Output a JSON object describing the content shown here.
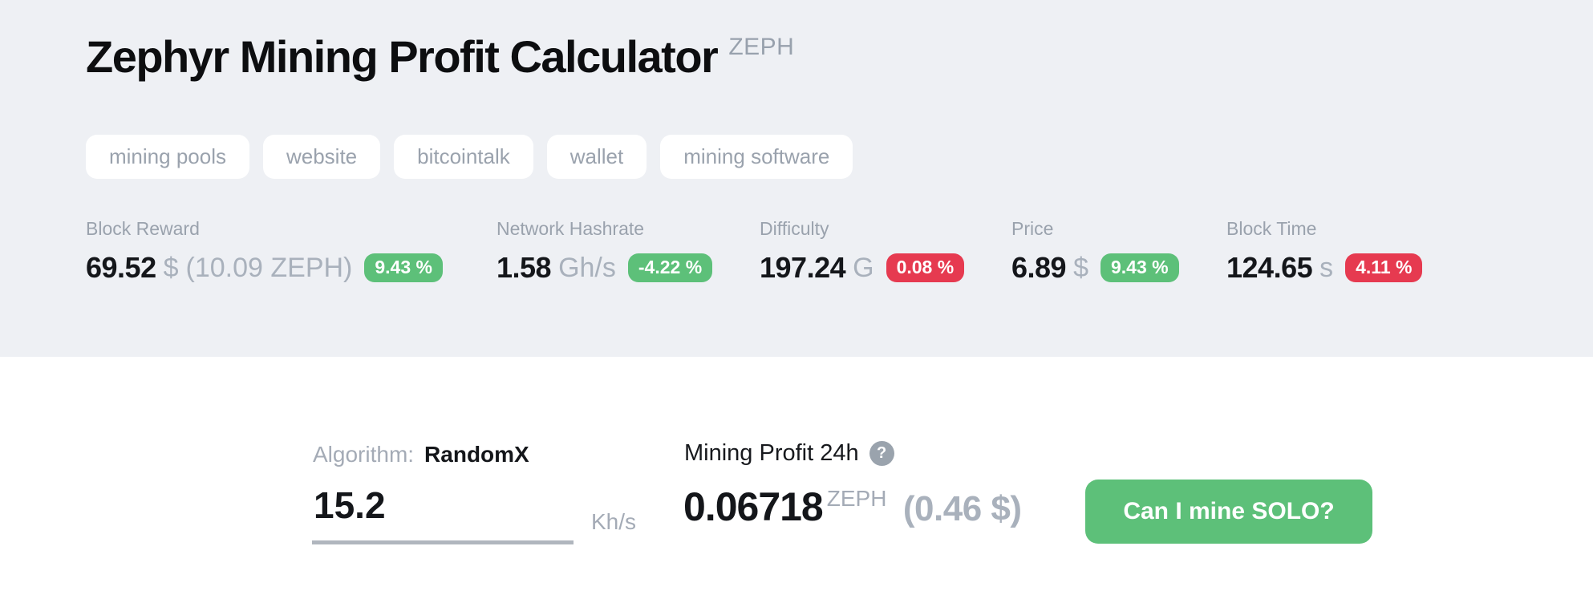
{
  "colors": {
    "green": "#5dc079",
    "red": "#e63a50",
    "hero_bg": "#eef0f4"
  },
  "header": {
    "title": "Zephyr Mining Profit Calculator",
    "coin": "ZEPH",
    "tags": [
      {
        "label": "mining pools"
      },
      {
        "label": "website"
      },
      {
        "label": "bitcointalk"
      },
      {
        "label": "wallet"
      },
      {
        "label": "mining software"
      }
    ]
  },
  "stats": [
    {
      "label": "Block Reward",
      "value": "69.52",
      "unit": "$",
      "extra": "(10.09 ZEPH)",
      "badge": "9.43 %",
      "badge_color": "green"
    },
    {
      "label": "Network Hashrate",
      "value": "1.58",
      "unit": "Gh/s",
      "extra": "",
      "badge": "-4.22 %",
      "badge_color": "green"
    },
    {
      "label": "Difficulty",
      "value": "197.24",
      "unit": "G",
      "extra": "",
      "badge": "0.08 %",
      "badge_color": "red"
    },
    {
      "label": "Price",
      "value": "6.89",
      "unit": "$",
      "extra": "",
      "badge": "9.43 %",
      "badge_color": "green"
    },
    {
      "label": "Block Time",
      "value": "124.65",
      "unit": "s",
      "extra": "",
      "badge": "4.11 %",
      "badge_color": "red"
    }
  ],
  "calculator": {
    "algorithm_label": "Algorithm:",
    "algorithm_value": "RandomX",
    "hashrate_value": "15.2",
    "hashrate_unit": "Kh/s",
    "profit_label": "Mining Profit 24h",
    "help_glyph": "?",
    "profit_value": "0.06718",
    "profit_coin": "ZEPH",
    "profit_fiat": "(0.46 $)",
    "solo_button_label": "Can I mine SOLO?"
  }
}
